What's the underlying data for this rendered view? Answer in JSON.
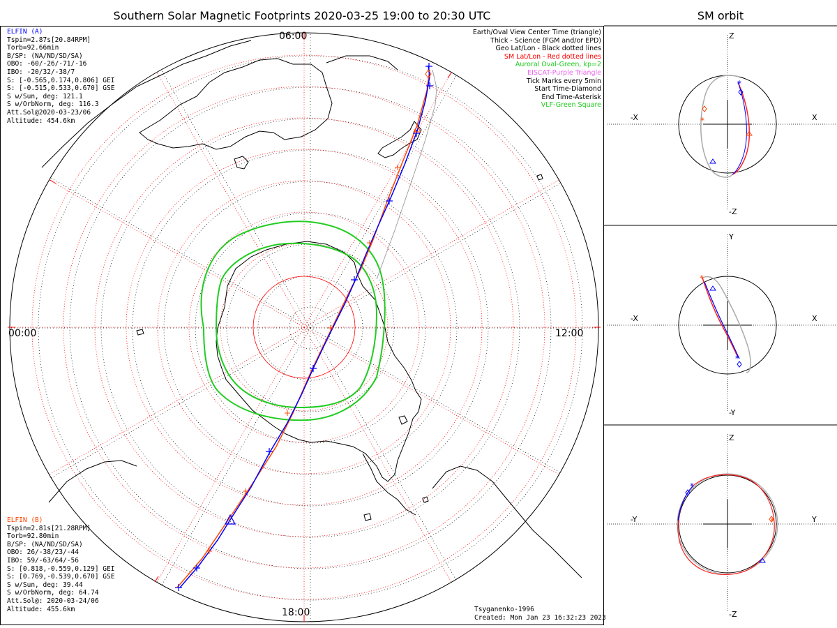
{
  "header": {
    "title": "Southern Solar Magnetic Footprints 2020-03-25 19:00 to 20:30 UTC",
    "sm_title": "SM orbit"
  },
  "clock_labels": {
    "top": "06:00",
    "left": "00:00",
    "right": "12:00",
    "bottom": "18:00"
  },
  "elfin_a": {
    "name": "ELFIN (A)",
    "color": "#0000ff",
    "lines": [
      "Tspin=2.87s[20.84RPM]",
      "Torb=92.66min",
      "B/SP: (NA/ND/SD/SA)",
      "OBO: -60/-26/-71/-16",
      "IBO: -20/32/-38/7",
      "S: [-0.565,0.174,0.806] GEI",
      "S: [-0.515,0.533,0.670] GSE",
      "S w/Sun, deg: 121.1",
      "S w/OrbNorm, deg: 116.3",
      "Att.Sol@2020-03-23/06",
      "Altitude: 454.6km"
    ]
  },
  "elfin_b": {
    "name": "ELFIN (B)",
    "color": "#ff4500",
    "lines": [
      "Tspin=2.81s[21.28RPM]",
      "Torb=92.80min",
      "B/SP: (NA/ND/SD/SA)",
      "OBO: 26/-38/23/-44",
      "IBO: 59/-63/64/-56",
      "S: [0.818,-0.559,0.129] GEI",
      "S: [0.769,-0.539,0.670] GSE",
      "S w/Sun, deg: 39.44",
      "S w/OrbNorm, deg: 64.74",
      "Att.Sol@: 2020-03-24/06",
      "Altitude: 455.6km"
    ]
  },
  "legend": [
    {
      "text": "Earth/Oval View Center Time (triangle)",
      "color": "#000000"
    },
    {
      "text": "Thick - Science (FGM and/or EPD)",
      "color": "#000000"
    },
    {
      "text": "Geo Lat/Lon - Black dotted lines",
      "color": "#000000"
    },
    {
      "text": "SM Lat/Lon - Red dotted lines",
      "color": "#ff0000"
    },
    {
      "text": "Auroral Oval-Green, kp=2",
      "color": "#22cc22"
    },
    {
      "text": "EISCAT-Purple Triangle",
      "color": "#ee66ee"
    },
    {
      "text": "Tick Marks every 5min",
      "color": "#000000"
    },
    {
      "text": "Start Time-Diamond",
      "color": "#000000"
    },
    {
      "text": "End Time-Asterisk",
      "color": "#000000"
    },
    {
      "text": "VLF-Green Square",
      "color": "#22cc22"
    }
  ],
  "footer": {
    "model": "Tsyganenko-1996",
    "created": "Created: Mon Jan 23 16:32:23 2023"
  },
  "sm_panels": [
    {
      "name": "xz",
      "top": "Z",
      "bottom": "-Z",
      "left": "-X",
      "right": "X"
    },
    {
      "name": "xy",
      "top": "Y",
      "bottom": "-Y",
      "left": "-X",
      "right": "X"
    },
    {
      "name": "yz",
      "top": "Z",
      "bottom": "-Z",
      "left": "-Y",
      "right": "Y"
    }
  ],
  "colors": {
    "elfin_a": "#0000ff",
    "elfin_b": "#ff4500",
    "oval": "#22cc22",
    "sm_grid": "#ff0000",
    "geo_grid": "#000000",
    "orbit_gray": "#aaaaaa"
  }
}
